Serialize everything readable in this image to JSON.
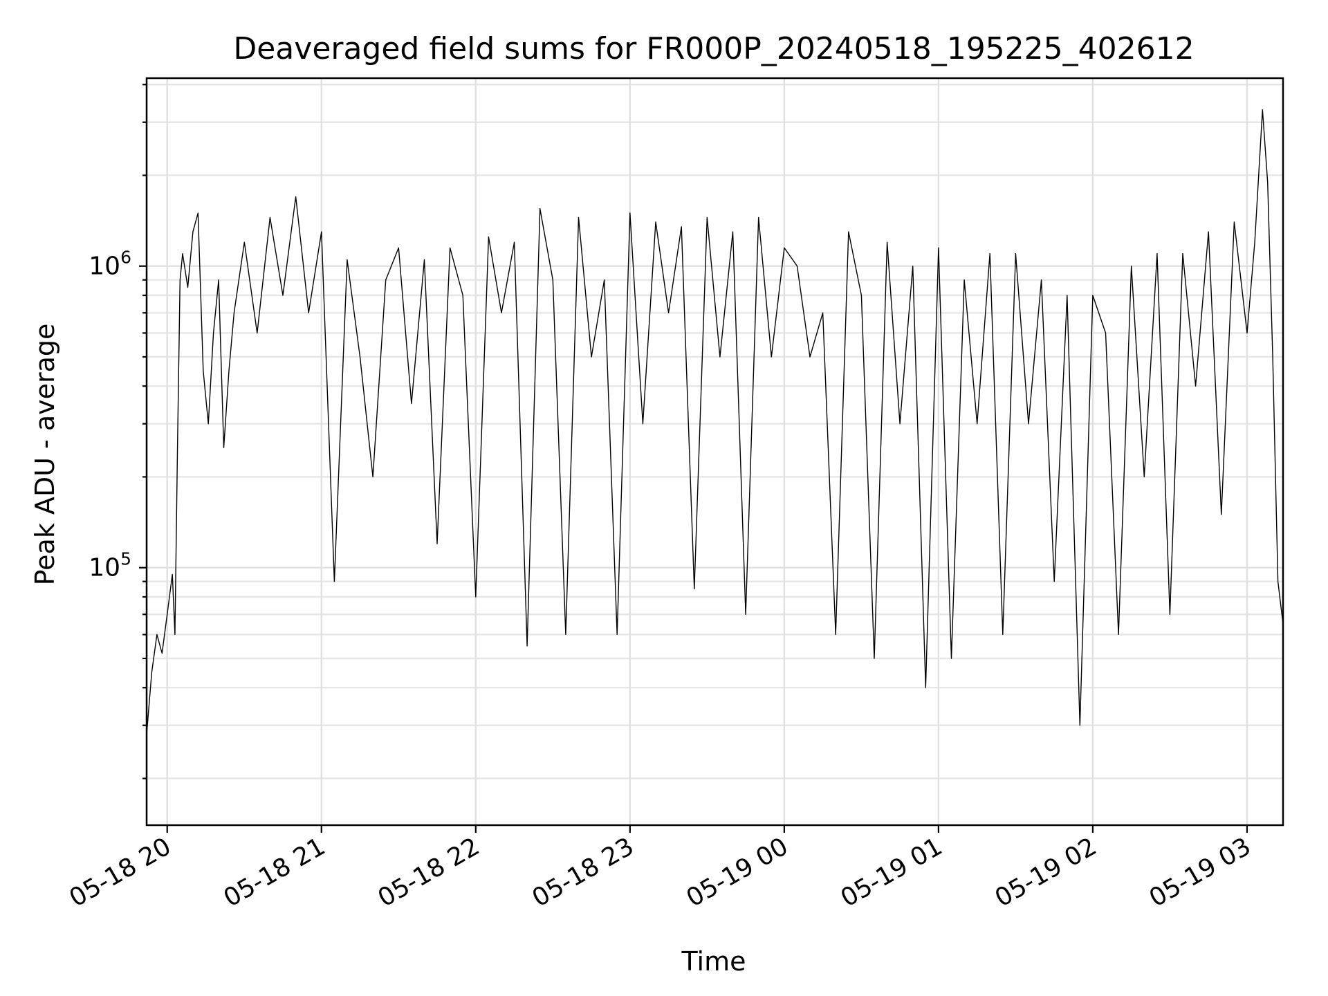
{
  "chart_data": {
    "type": "line",
    "title": "Deaveraged field sums for FR000P_20240518_195225_402612",
    "xlabel": "Time",
    "ylabel": "Peak ADU - average",
    "y_scale": "log",
    "grid": "on (major and minor)",
    "xlim": [
      "2024-05-18 19:52",
      "2024-05-19 03:14"
    ],
    "ylim": [
      14000,
      4200000
    ],
    "x_ticks": [
      {
        "value": "2024-05-18 20:00",
        "label": "05-18 20"
      },
      {
        "value": "2024-05-18 21:00",
        "label": "05-18 21"
      },
      {
        "value": "2024-05-18 22:00",
        "label": "05-18 22"
      },
      {
        "value": "2024-05-18 23:00",
        "label": "05-18 23"
      },
      {
        "value": "2024-05-19 00:00",
        "label": "05-19 00"
      },
      {
        "value": "2024-05-19 01:00",
        "label": "05-19 01"
      },
      {
        "value": "2024-05-19 02:00",
        "label": "05-19 02"
      },
      {
        "value": "2024-05-19 03:00",
        "label": "05-19 03"
      }
    ],
    "y_ticks": [
      {
        "value": 100000,
        "base": "10",
        "exp": "5"
      },
      {
        "value": 1000000,
        "base": "10",
        "exp": "6"
      }
    ],
    "series": [
      {
        "color": "#000000",
        "x": [
          "2024-05-18 19:52",
          "2024-05-18 19:54",
          "2024-05-18 19:56",
          "2024-05-18 19:58",
          "2024-05-18 20:00",
          "2024-05-18 20:02",
          "2024-05-18 20:03",
          "2024-05-18 20:04",
          "2024-05-18 20:05",
          "2024-05-18 20:06",
          "2024-05-18 20:08",
          "2024-05-18 20:10",
          "2024-05-18 20:12",
          "2024-05-18 20:14",
          "2024-05-18 20:16",
          "2024-05-18 20:18",
          "2024-05-18 20:20",
          "2024-05-18 20:22",
          "2024-05-18 20:24",
          "2024-05-18 20:26",
          "2024-05-18 20:30",
          "2024-05-18 20:35",
          "2024-05-18 20:40",
          "2024-05-18 20:45",
          "2024-05-18 20:50",
          "2024-05-18 20:55",
          "2024-05-18 21:00",
          "2024-05-18 21:05",
          "2024-05-18 21:10",
          "2024-05-18 21:15",
          "2024-05-18 21:20",
          "2024-05-18 21:25",
          "2024-05-18 21:30",
          "2024-05-18 21:35",
          "2024-05-18 21:40",
          "2024-05-18 21:45",
          "2024-05-18 21:50",
          "2024-05-18 21:55",
          "2024-05-18 22:00",
          "2024-05-18 22:05",
          "2024-05-18 22:10",
          "2024-05-18 22:15",
          "2024-05-18 22:20",
          "2024-05-18 22:25",
          "2024-05-18 22:30",
          "2024-05-18 22:35",
          "2024-05-18 22:40",
          "2024-05-18 22:45",
          "2024-05-18 22:50",
          "2024-05-18 22:55",
          "2024-05-18 23:00",
          "2024-05-18 23:05",
          "2024-05-18 23:10",
          "2024-05-18 23:15",
          "2024-05-18 23:20",
          "2024-05-18 23:25",
          "2024-05-18 23:30",
          "2024-05-18 23:35",
          "2024-05-18 23:40",
          "2024-05-18 23:45",
          "2024-05-18 23:50",
          "2024-05-18 23:55",
          "2024-05-19 00:00",
          "2024-05-19 00:05",
          "2024-05-19 00:10",
          "2024-05-19 00:15",
          "2024-05-19 00:20",
          "2024-05-19 00:25",
          "2024-05-19 00:30",
          "2024-05-19 00:35",
          "2024-05-19 00:40",
          "2024-05-19 00:45",
          "2024-05-19 00:50",
          "2024-05-19 00:55",
          "2024-05-19 01:00",
          "2024-05-19 01:05",
          "2024-05-19 01:10",
          "2024-05-19 01:15",
          "2024-05-19 01:20",
          "2024-05-19 01:25",
          "2024-05-19 01:30",
          "2024-05-19 01:35",
          "2024-05-19 01:40",
          "2024-05-19 01:45",
          "2024-05-19 01:50",
          "2024-05-19 01:55",
          "2024-05-19 02:00",
          "2024-05-19 02:05",
          "2024-05-19 02:10",
          "2024-05-19 02:15",
          "2024-05-19 02:20",
          "2024-05-19 02:25",
          "2024-05-19 02:30",
          "2024-05-19 02:35",
          "2024-05-19 02:40",
          "2024-05-19 02:45",
          "2024-05-19 02:50",
          "2024-05-19 02:55",
          "2024-05-19 03:00",
          "2024-05-19 03:03",
          "2024-05-19 03:06",
          "2024-05-19 03:08",
          "2024-05-19 03:10",
          "2024-05-19 03:12",
          "2024-05-19 03:14"
        ],
        "y": [
          28000,
          45000,
          60000,
          52000,
          70000,
          95000,
          60000,
          250000,
          900000,
          1100000,
          850000,
          1300000,
          1500000,
          450000,
          300000,
          600000,
          900000,
          250000,
          450000,
          700000,
          1200000,
          600000,
          1450000,
          800000,
          1700000,
          700000,
          1300000,
          90000,
          1050000,
          500000,
          200000,
          900000,
          1150000,
          350000,
          1050000,
          120000,
          1150000,
          800000,
          80000,
          1250000,
          700000,
          1200000,
          55000,
          1550000,
          900000,
          60000,
          1450000,
          500000,
          900000,
          60000,
          1500000,
          300000,
          1400000,
          700000,
          1350000,
          85000,
          1450000,
          500000,
          1300000,
          70000,
          1450000,
          500000,
          1150000,
          1000000,
          500000,
          700000,
          60000,
          1300000,
          800000,
          50000,
          1200000,
          300000,
          1000000,
          40000,
          1150000,
          50000,
          900000,
          300000,
          1100000,
          60000,
          1100000,
          300000,
          900000,
          90000,
          800000,
          30000,
          800000,
          600000,
          60000,
          1000000,
          200000,
          1100000,
          70000,
          1100000,
          400000,
          1300000,
          150000,
          1400000,
          600000,
          1200000,
          3300000,
          1900000,
          500000,
          90000,
          65000
        ]
      }
    ]
  }
}
